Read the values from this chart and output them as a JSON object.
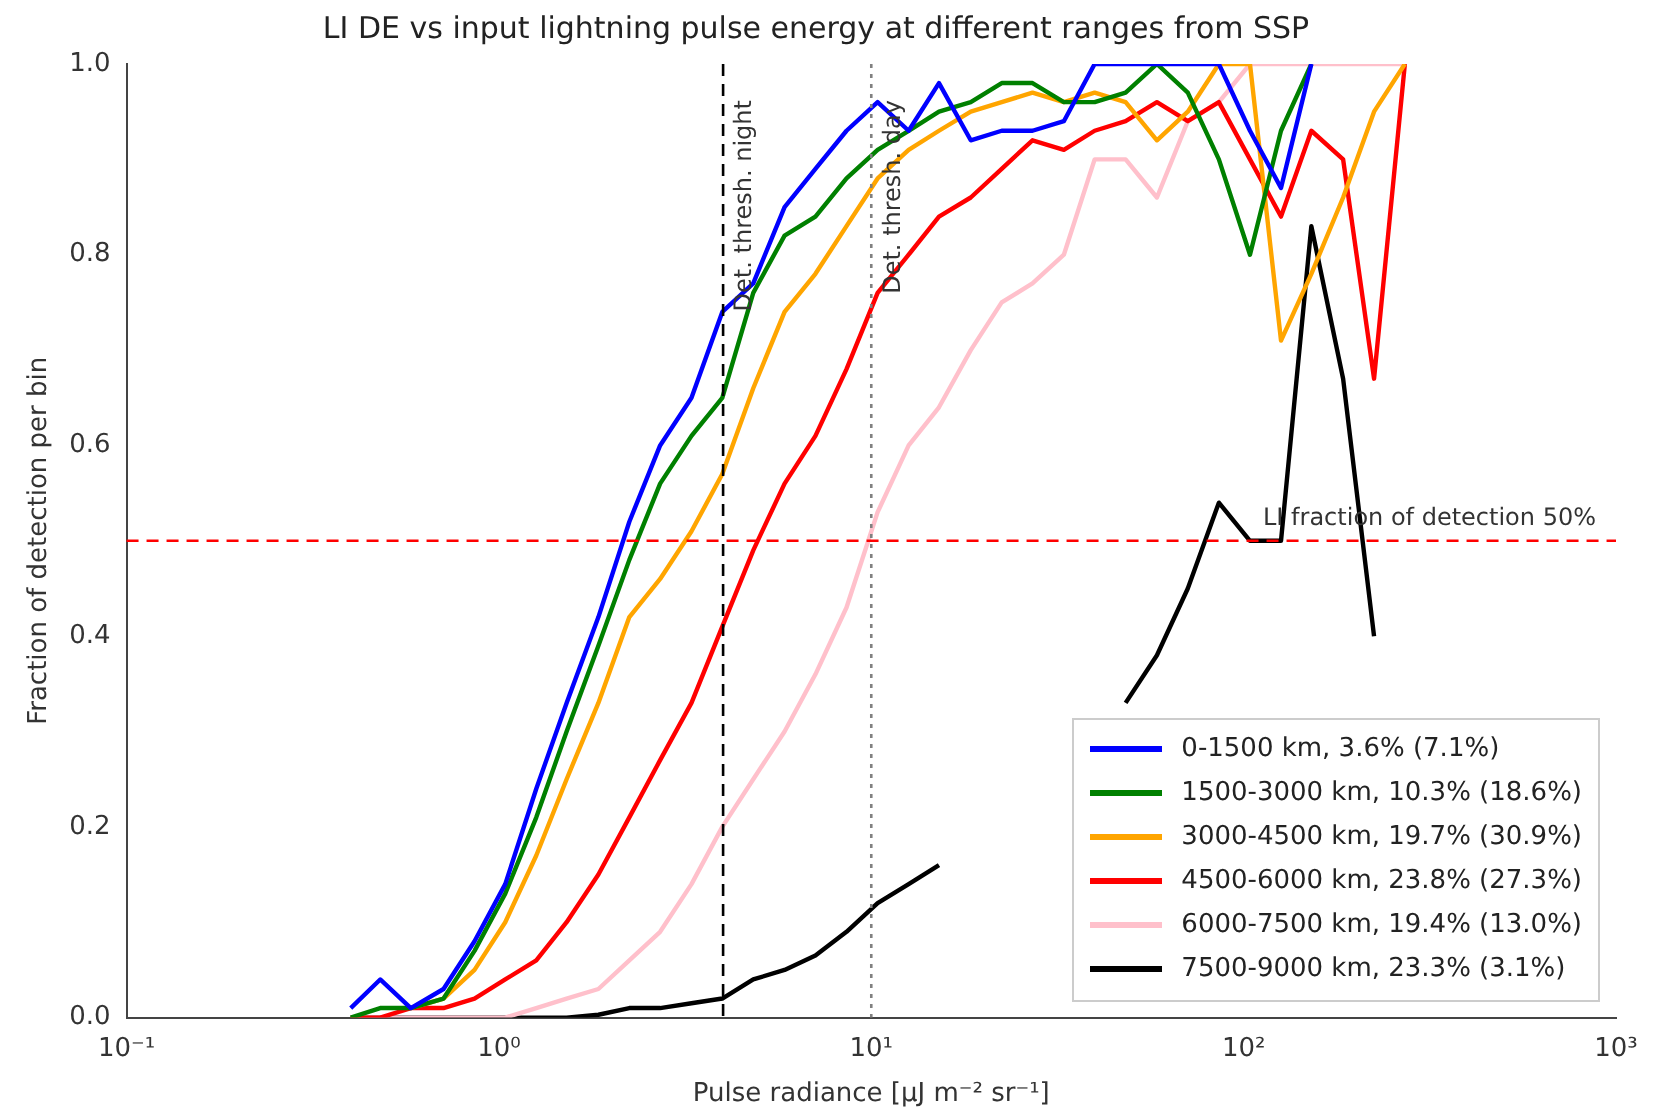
{
  "chart_data": {
    "type": "line",
    "title": "LI DE vs input lightning pulse energy at different ranges from SSP",
    "xlabel": "Pulse radiance [μJ m⁻² sr⁻¹]",
    "ylabel": "Fraction of detection per bin",
    "x": [
      0.4,
      0.48,
      0.58,
      0.71,
      0.86,
      1.04,
      1.26,
      1.52,
      1.85,
      2.24,
      2.71,
      3.29,
      3.98,
      4.82,
      5.85,
      7.08,
      8.58,
      10.4,
      12.6,
      15.2,
      18.5,
      22.4,
      27.1,
      32.9,
      39.8,
      48.2,
      58.5,
      70.8,
      85.8,
      104,
      126,
      152,
      185,
      224,
      271
    ],
    "log": "x",
    "xlim": [
      0.1,
      1000
    ],
    "xticks": [
      {
        "value": 0.1,
        "label": "10⁻¹"
      },
      {
        "value": 1,
        "label": "10⁰"
      },
      {
        "value": 10,
        "label": "10¹"
      },
      {
        "value": 100,
        "label": "10²"
      },
      {
        "value": 1000,
        "label": "10³"
      }
    ],
    "ylim": [
      0,
      1
    ],
    "yticks": [
      {
        "value": 0,
        "label": "0.0"
      },
      0.2,
      0.4,
      0.6,
      0.8,
      {
        "value": 1,
        "label": "1.0"
      }
    ],
    "grid": false,
    "legend": "bottom right",
    "marker": "none",
    "line_style": "solid",
    "series": [
      {
        "name": "0-1500 km, 3.6% (7.1%)",
        "color": "#0000ff",
        "values": [
          0.01,
          0.04,
          0.01,
          0.03,
          0.08,
          0.14,
          0.24,
          0.33,
          0.42,
          0.52,
          0.6,
          0.65,
          0.74,
          0.77,
          0.85,
          0.89,
          0.93,
          0.96,
          0.93,
          0.98,
          0.92,
          0.93,
          0.93,
          0.94,
          1,
          1,
          1,
          1,
          1,
          0.93,
          0.87,
          1,
          null,
          null,
          null
        ]
      },
      {
        "name": "1500-3000 km, 10.3% (18.6%)",
        "color": "#008000",
        "values": [
          0,
          0.01,
          0.01,
          0.02,
          0.07,
          0.13,
          0.21,
          0.3,
          0.39,
          0.48,
          0.56,
          0.61,
          0.65,
          0.76,
          0.82,
          0.84,
          0.88,
          0.91,
          0.93,
          0.95,
          0.96,
          0.98,
          0.98,
          0.96,
          0.96,
          0.97,
          1,
          0.97,
          0.9,
          0.8,
          0.93,
          1,
          null,
          null,
          null
        ]
      },
      {
        "name": "3000-4500 km, 19.7% (30.9%)",
        "color": "#ffa500",
        "values": [
          null,
          null,
          0.01,
          0.02,
          0.05,
          0.1,
          0.17,
          0.25,
          0.33,
          0.42,
          0.46,
          0.51,
          0.57,
          0.66,
          0.74,
          0.78,
          0.83,
          0.88,
          0.91,
          0.93,
          0.95,
          0.96,
          0.97,
          0.96,
          0.97,
          0.96,
          0.92,
          0.95,
          1,
          1,
          0.71,
          0.78,
          0.86,
          0.95,
          1
        ]
      },
      {
        "name": "4500-6000 km, 23.8% (27.3%)",
        "color": "#ff0000",
        "values": [
          0,
          0,
          0.01,
          0.01,
          0.02,
          0.04,
          0.06,
          0.1,
          0.15,
          0.21,
          0.27,
          0.33,
          0.41,
          0.49,
          0.56,
          0.61,
          0.68,
          0.76,
          0.8,
          0.84,
          0.86,
          0.89,
          0.92,
          0.91,
          0.93,
          0.94,
          0.96,
          0.94,
          0.96,
          0.9,
          0.84,
          0.93,
          0.9,
          0.67,
          1
        ]
      },
      {
        "name": "6000-7500 km, 19.4% (13.0%)",
        "color": "#ffc0cb",
        "values": [
          0,
          0,
          0,
          0,
          0,
          0,
          0.01,
          0.02,
          0.03,
          0.06,
          0.09,
          0.14,
          0.2,
          0.25,
          0.3,
          0.36,
          0.43,
          0.53,
          0.6,
          0.64,
          0.7,
          0.75,
          0.77,
          0.8,
          0.9,
          0.9,
          0.86,
          0.94,
          0.96,
          1,
          1,
          1,
          1,
          1,
          1
        ]
      },
      {
        "name": "7500-9000 km, 23.3% (3.1%)",
        "color": "#000000",
        "values": [
          0,
          0,
          0,
          0,
          0,
          0,
          0,
          0,
          0.003,
          0.01,
          0.01,
          0.015,
          0.02,
          0.04,
          0.05,
          0.065,
          0.09,
          0.12,
          0.14,
          0.16,
          null,
          null,
          null,
          null,
          null,
          0.33,
          0.38,
          0.45,
          0.54,
          0.5,
          0.5,
          0.83,
          0.67,
          0.4,
          null
        ]
      }
    ],
    "ref_lines": [
      {
        "axis": "x",
        "value": 4,
        "label": "Det. thresh. night",
        "color": "#000000",
        "line_style": "dashed"
      },
      {
        "axis": "x",
        "value": 10,
        "label": "Det. thresh. day",
        "color": "#808080",
        "line_style": "dotted"
      },
      {
        "axis": "y",
        "value": 0.5,
        "label": "LI fraction of detection 50%",
        "color": "#ff0000",
        "line_style": "dashed"
      }
    ]
  }
}
